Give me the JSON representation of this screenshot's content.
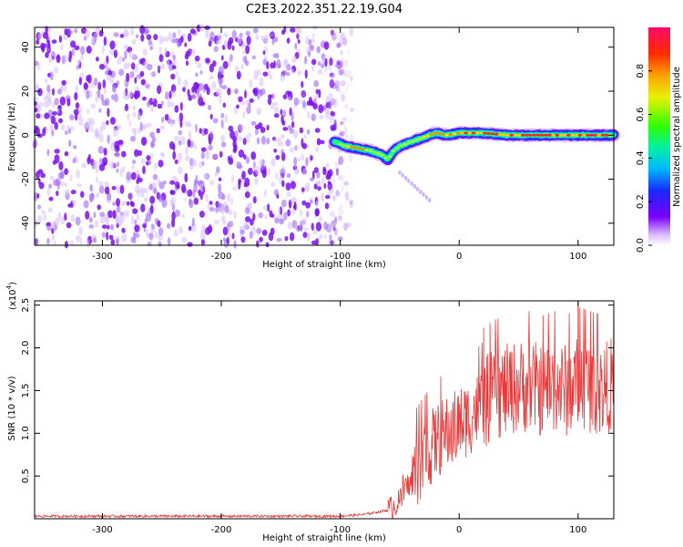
{
  "title": "C2E3.2022.351.22.19.G04",
  "chart_data": [
    {
      "type": "heatmap",
      "xlabel": "Height of straight line (km)",
      "ylabel": "Frequency (Hz)",
      "xlim": [
        -357,
        130
      ],
      "ylim": [
        -50,
        49
      ],
      "xticks": [
        -300,
        -200,
        -100,
        0,
        100
      ],
      "yticks": [
        -40,
        -20,
        0,
        20,
        40
      ],
      "noise_region_x": [
        -357,
        -90
      ],
      "signal_track": {
        "x": [
          -105,
          -95,
          -85,
          -75,
          -65,
          -60,
          -55,
          -50,
          -45,
          -40,
          -30,
          -20,
          -10,
          0,
          20,
          40,
          60,
          80,
          100,
          120,
          130
        ],
        "y": [
          -3,
          -5,
          -6,
          -7,
          -9,
          -11,
          -7,
          -5,
          -4,
          -3,
          -1,
          1,
          0,
          1,
          1,
          0,
          0,
          0,
          0,
          0,
          0
        ]
      },
      "colorbar": {
        "label": "Normalized spectral amplitude",
        "range": [
          0.0,
          1.0
        ],
        "ticks": [
          "0.0",
          "0.2",
          "0.4",
          "0.6",
          "0.8"
        ]
      },
      "grid": false
    },
    {
      "type": "line",
      "xlabel": "Height of straight line (km)",
      "ylabel": "SNR (10 * v/v)",
      "scale_label": "(x10",
      "scale_exp": "4",
      "xlim": [
        -357,
        130
      ],
      "ylim": [
        0.0,
        2.55
      ],
      "xticks": [
        -300,
        -200,
        -100,
        0,
        100
      ],
      "yticks": [
        "0.5",
        "1.0",
        "1.5",
        "2.0",
        "2.5"
      ],
      "color": "#e83a3a",
      "series": [
        {
          "x": [
            -357,
            -300,
            -200,
            -100,
            -80,
            -60,
            -50,
            -45,
            -40,
            -35,
            -30,
            -25,
            -20,
            -15,
            -10,
            -5,
            0,
            10,
            20,
            30,
            40,
            50,
            60,
            70,
            80,
            90,
            100,
            110,
            120,
            130
          ],
          "y": [
            0.03,
            0.03,
            0.03,
            0.03,
            0.05,
            0.1,
            0.2,
            0.35,
            0.45,
            0.6,
            0.7,
            0.8,
            0.9,
            0.95,
            1.0,
            1.05,
            1.1,
            1.2,
            1.35,
            1.45,
            1.5,
            1.55,
            1.55,
            1.5,
            1.55,
            1.5,
            1.6,
            1.55,
            1.5,
            1.6
          ]
        }
      ],
      "peak": {
        "x": 100,
        "y": 2.55
      },
      "grid": false
    }
  ]
}
